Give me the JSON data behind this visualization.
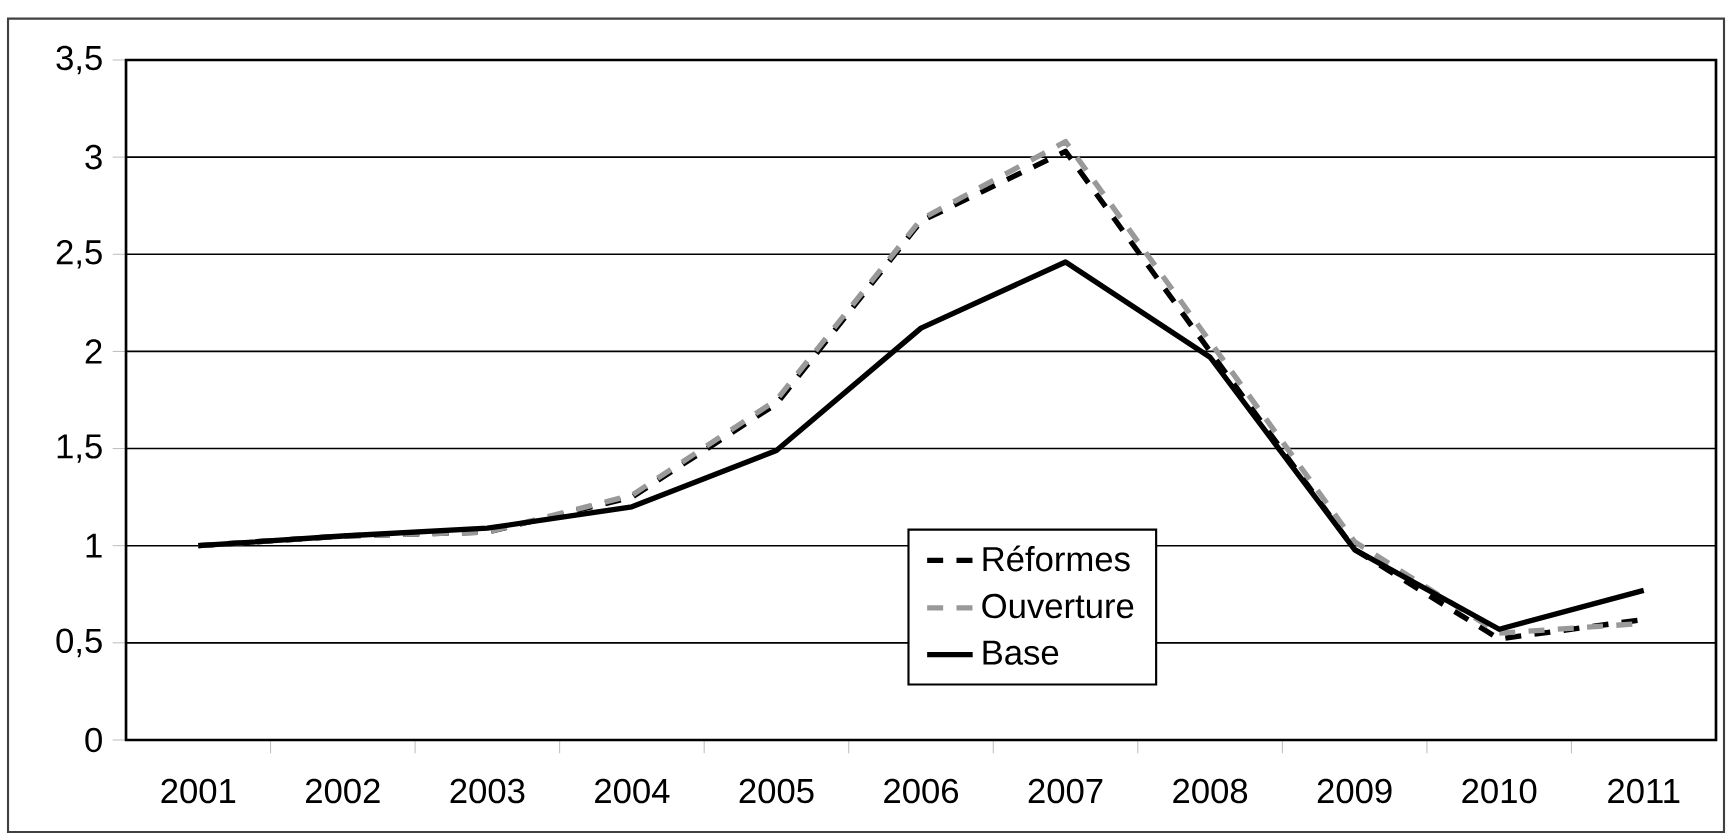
{
  "chart_data": {
    "type": "line",
    "categories": [
      "2001",
      "2002",
      "2003",
      "2004",
      "2005",
      "2006",
      "2007",
      "2008",
      "2009",
      "2010",
      "2011"
    ],
    "series": [
      {
        "name": "Réformes",
        "color": "#000000",
        "line_style": "dashed",
        "values": [
          1.0,
          1.05,
          1.07,
          1.25,
          1.73,
          2.67,
          3.03,
          2.0,
          0.98,
          0.52,
          0.62
        ]
      },
      {
        "name": "Ouverture",
        "color": "#999999",
        "line_style": "dashed",
        "values": [
          1.0,
          1.05,
          1.07,
          1.26,
          1.75,
          2.68,
          3.08,
          2.05,
          1.02,
          0.55,
          0.6
        ]
      },
      {
        "name": "Base",
        "color": "#000000",
        "line_style": "solid",
        "values": [
          1.0,
          1.05,
          1.09,
          1.2,
          1.49,
          2.12,
          2.46,
          1.97,
          0.98,
          0.57,
          0.77
        ]
      }
    ],
    "ylim": [
      0,
      3.5
    ],
    "yticks": [
      0,
      {
        "value": 0.5,
        "label": "0,5"
      },
      1,
      {
        "value": 1.5,
        "label": "1,5"
      },
      2,
      {
        "value": 2.5,
        "label": "2,5"
      },
      3,
      {
        "value": 3.5,
        "label": "3,5"
      }
    ],
    "grid": "y",
    "legend": "bottom",
    "marker": "none"
  }
}
